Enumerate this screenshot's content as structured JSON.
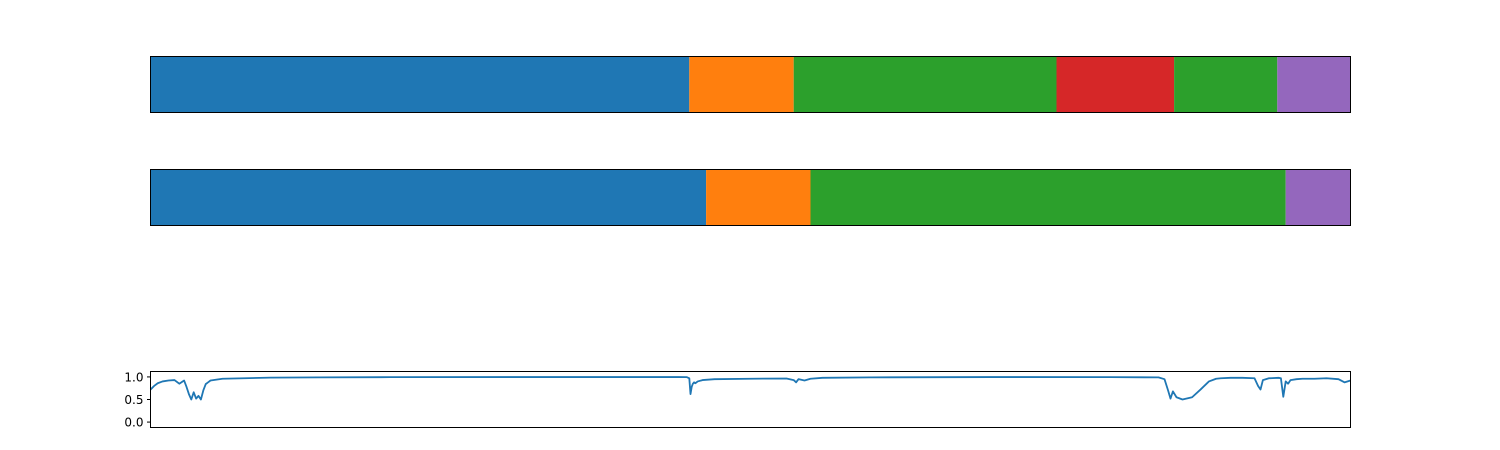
{
  "chart_data": [
    {
      "type": "segmentation-bar",
      "xlim": [
        0,
        1000
      ],
      "segments": [
        {
          "start": 0,
          "end": 449,
          "class_index": 0
        },
        {
          "start": 449,
          "end": 536,
          "class_index": 1
        },
        {
          "start": 536,
          "end": 755,
          "class_index": 2
        },
        {
          "start": 755,
          "end": 853,
          "class_index": 3
        },
        {
          "start": 853,
          "end": 939,
          "class_index": 2
        },
        {
          "start": 939,
          "end": 1000,
          "class_index": 4
        }
      ]
    },
    {
      "type": "segmentation-bar",
      "xlim": [
        0,
        1000
      ],
      "segments": [
        {
          "start": 0,
          "end": 463,
          "class_index": 0
        },
        {
          "start": 463,
          "end": 550,
          "class_index": 1
        },
        {
          "start": 550,
          "end": 946,
          "class_index": 2
        },
        {
          "start": 946,
          "end": 1000,
          "class_index": 4
        }
      ]
    },
    {
      "type": "line",
      "xlim": [
        0,
        1000
      ],
      "ylim": [
        -0.12,
        1.12
      ],
      "yticks": [
        0.0,
        0.5,
        1.0
      ],
      "ytick_labels": [
        "0.0",
        "0.5",
        "1.0"
      ],
      "x": [
        0,
        3,
        6,
        10,
        15,
        20,
        24,
        28,
        30,
        32,
        34,
        36,
        38,
        40,
        42,
        44,
        46,
        48,
        50,
        60,
        100,
        140,
        200,
        300,
        400,
        440,
        447,
        449,
        450,
        451,
        452,
        453,
        454,
        456,
        460,
        470,
        500,
        530,
        536,
        538,
        540,
        545,
        550,
        560,
        600,
        700,
        800,
        840,
        845,
        848,
        850,
        852,
        855,
        860,
        868,
        875,
        882,
        888,
        892,
        900,
        910,
        920,
        923,
        925,
        927,
        932,
        940,
        942,
        944,
        946,
        948,
        950,
        955,
        960,
        970,
        980,
        990,
        995,
        1000
      ],
      "y": [
        0.72,
        0.8,
        0.86,
        0.9,
        0.92,
        0.93,
        0.85,
        0.92,
        0.78,
        0.62,
        0.5,
        0.66,
        0.52,
        0.58,
        0.5,
        0.7,
        0.84,
        0.88,
        0.92,
        0.96,
        0.985,
        0.99,
        0.995,
        0.997,
        0.997,
        0.997,
        0.995,
        0.97,
        0.62,
        0.78,
        0.85,
        0.88,
        0.86,
        0.9,
        0.93,
        0.95,
        0.96,
        0.965,
        0.93,
        0.88,
        0.95,
        0.92,
        0.96,
        0.98,
        0.99,
        0.997,
        0.995,
        0.99,
        0.95,
        0.7,
        0.52,
        0.68,
        0.55,
        0.5,
        0.55,
        0.72,
        0.9,
        0.96,
        0.97,
        0.98,
        0.98,
        0.97,
        0.8,
        0.72,
        0.93,
        0.97,
        0.98,
        0.97,
        0.56,
        0.9,
        0.85,
        0.93,
        0.95,
        0.96,
        0.96,
        0.97,
        0.95,
        0.88,
        0.92
      ]
    }
  ],
  "colors": {
    "class_colors": [
      "#1f77b4",
      "#ff7f0e",
      "#2ca02c",
      "#d62728",
      "#9467bd"
    ],
    "line": "#1f77b4",
    "frame": "#000000"
  }
}
